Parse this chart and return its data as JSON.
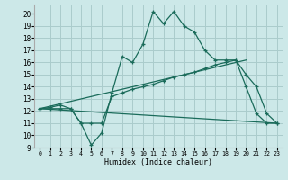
{
  "xlabel": "Humidex (Indice chaleur)",
  "bg_color": "#cce8e8",
  "grid_color": "#aacccc",
  "line_color": "#1a6b5a",
  "xlim": [
    -0.5,
    23.5
  ],
  "ylim": [
    9,
    20.7
  ],
  "yticks": [
    9,
    10,
    11,
    12,
    13,
    14,
    15,
    16,
    17,
    18,
    19,
    20
  ],
  "xticks": [
    0,
    1,
    2,
    3,
    4,
    5,
    6,
    7,
    8,
    9,
    10,
    11,
    12,
    13,
    14,
    15,
    16,
    17,
    18,
    19,
    20,
    21,
    22,
    23
  ],
  "line1_x": [
    0,
    1,
    2,
    3,
    4,
    5,
    6,
    7,
    8,
    9,
    10,
    11,
    12,
    13,
    14,
    15,
    16,
    17,
    18,
    19,
    20,
    21,
    22,
    23
  ],
  "line1_y": [
    12.2,
    12.2,
    12.2,
    12.2,
    11.0,
    9.2,
    10.2,
    13.5,
    16.5,
    16.0,
    17.5,
    20.2,
    19.2,
    20.2,
    19.0,
    18.5,
    17.0,
    16.2,
    16.2,
    16.2,
    14.0,
    11.8,
    11.0,
    11.0
  ],
  "line2_x": [
    0,
    1,
    2,
    3,
    4,
    5,
    6,
    7,
    8,
    9,
    10,
    11,
    12,
    13,
    14,
    15,
    16,
    17,
    18,
    19,
    20,
    21,
    22,
    23
  ],
  "line2_y": [
    12.2,
    12.3,
    12.5,
    12.2,
    11.0,
    11.0,
    11.0,
    13.2,
    13.5,
    13.8,
    14.0,
    14.2,
    14.5,
    14.8,
    15.0,
    15.2,
    15.5,
    15.8,
    16.0,
    16.2,
    15.0,
    14.0,
    11.8,
    11.0
  ],
  "line3_x": [
    0,
    23
  ],
  "line3_y": [
    12.2,
    11.0
  ],
  "line4_x": [
    0,
    20
  ],
  "line4_y": [
    12.2,
    16.2
  ]
}
